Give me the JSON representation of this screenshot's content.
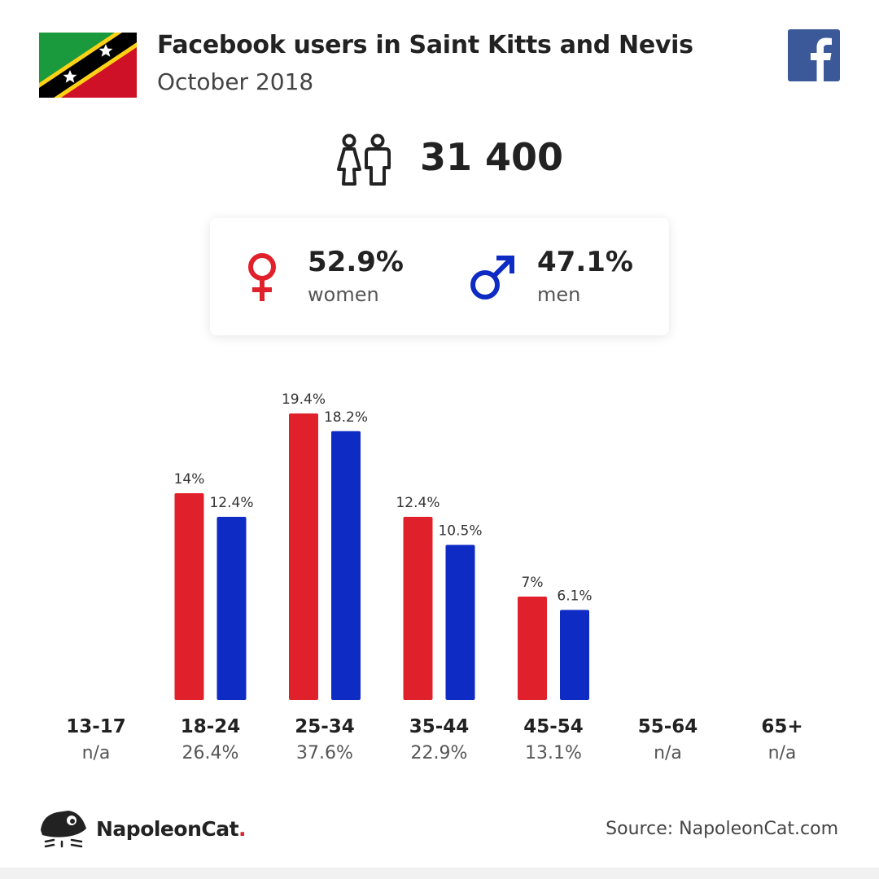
{
  "header": {
    "title": "Facebook users in Saint Kitts and Nevis",
    "subtitle": "October 2018"
  },
  "icons": {
    "flag": "saint-kitts-and-nevis-flag",
    "platform": "facebook-icon",
    "users": "users-icon",
    "female": "female-symbol-icon",
    "male": "male-symbol-icon",
    "brand_logo": "napoleoncat-logo-icon"
  },
  "colors": {
    "women": "#e0202a",
    "men": "#0e2bc4",
    "facebook": "#3b5998"
  },
  "total_users": "31 400",
  "gender": {
    "women": {
      "pct": "52.9%",
      "label": "women"
    },
    "men": {
      "pct": "47.1%",
      "label": "men"
    }
  },
  "chart_data": {
    "type": "bar",
    "categories": [
      "13-17",
      "18-24",
      "25-34",
      "35-44",
      "45-54",
      "55-64",
      "65+"
    ],
    "category_totals": [
      "n/a",
      "26.4%",
      "37.6%",
      "22.9%",
      "13.1%",
      "n/a",
      "n/a"
    ],
    "series": [
      {
        "color": "#e0202a",
        "values": [
          null,
          14,
          19.4,
          12.4,
          7,
          null,
          null
        ],
        "labels": [
          "",
          "14%",
          "19.4%",
          "12.4%",
          "7%",
          "",
          ""
        ]
      },
      {
        "color": "#0e2bc4",
        "values": [
          null,
          12.4,
          18.2,
          10.5,
          6.1,
          null,
          null
        ],
        "labels": [
          "",
          "12.4%",
          "18.2%",
          "10.5%",
          "6.1%",
          "",
          ""
        ]
      }
    ],
    "ylim": [
      0,
      19.4
    ],
    "grid": false
  },
  "footer": {
    "brand": "NapoleonCat",
    "brand_dot": ".",
    "source": "Source: NapoleonCat.com"
  }
}
